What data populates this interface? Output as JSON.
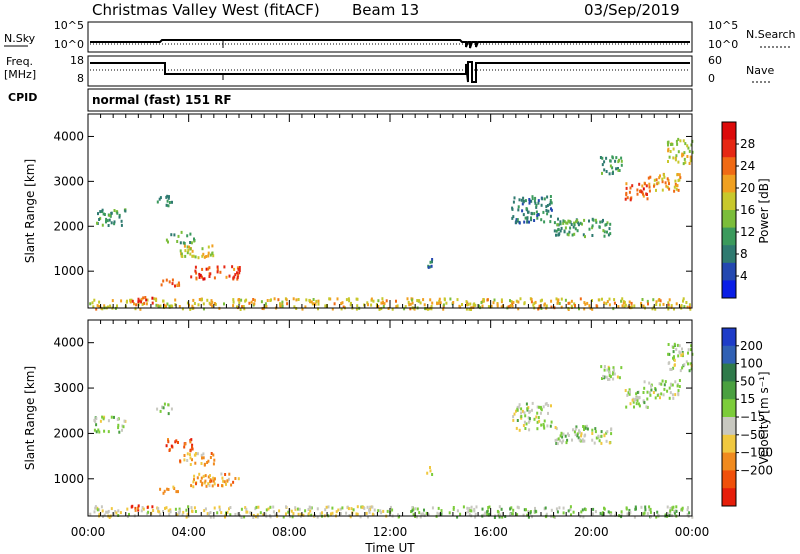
{
  "header": {
    "station": "Christmas Valley West (fitACF)",
    "beam": "Beam 13",
    "date": "03/Sep/2019"
  },
  "labels": {
    "nsky": "N.Sky",
    "nsearch": "N.Search",
    "freq_a": "Freq.",
    "freq_b": "[MHz]",
    "nave": "Nave",
    "cpid": "CPID",
    "cpid_value": "normal (fast) 151 RF",
    "xlabel": "Time UT",
    "ylabel": "Slant Range [km]",
    "power_label": "Power [dB]",
    "velocity_label": "Velocity [m s⁻¹]"
  },
  "noise_axis": {
    "left_ticks": [
      "10^5",
      "10^0"
    ],
    "right_ticks": [
      "10^5",
      "10^0"
    ]
  },
  "freq_axis": {
    "left_ticks": [
      "18",
      "8"
    ],
    "right_ticks": [
      "60",
      "0"
    ]
  },
  "x_axis": {
    "ticks": [
      "00:00",
      "04:00",
      "08:00",
      "12:00",
      "16:00",
      "20:00",
      "00:00"
    ],
    "range": [
      0,
      24
    ]
  },
  "y_axis": {
    "ticks": [
      "1000",
      "2000",
      "3000",
      "4000"
    ],
    "range": [
      180,
      4500
    ]
  },
  "power_scale": {
    "ticks": [
      "4",
      "8",
      "12",
      "16",
      "20",
      "24",
      "28"
    ],
    "colors": [
      "#0a1ee6",
      "#2448b0",
      "#2f7a70",
      "#3b9a5c",
      "#7bbd3a",
      "#c8c82c",
      "#f0a020",
      "#f06a14",
      "#e62814",
      "#dc0a0a"
    ]
  },
  "velocity_scale": {
    "ticks": [
      "200",
      "100",
      "50",
      "15",
      "−15",
      "−50",
      "−100",
      "−200"
    ],
    "colors": [
      "#1e3cc8",
      "#3060b4",
      "#2f7a4a",
      "#4aa040",
      "#7ccc3a",
      "#c8c8c0",
      "#f0c840",
      "#f08a1e",
      "#f0500a",
      "#e61e0a"
    ]
  },
  "chart_data": [
    {
      "type": "heatmap",
      "title": "Power [dB]",
      "xlabel": "Time UT",
      "ylabel": "Slant Range [km]",
      "xlim": [
        0,
        24
      ],
      "ylim": [
        180,
        4500
      ],
      "clim": [
        0,
        30
      ],
      "regions": [
        {
          "t": [
            0.0,
            24.0
          ],
          "r": [
            180,
            420
          ],
          "value": 18
        },
        {
          "t": [
            0.2,
            1.5
          ],
          "r": [
            2050,
            2400
          ],
          "value": 10
        },
        {
          "t": [
            2.7,
            3.3
          ],
          "r": [
            2450,
            2700
          ],
          "value": 8
        },
        {
          "t": [
            3.0,
            4.2
          ],
          "r": [
            1650,
            1900
          ],
          "value": 10
        },
        {
          "t": [
            3.6,
            5.0
          ],
          "r": [
            1300,
            1600
          ],
          "value": 16
        },
        {
          "t": [
            4.0,
            6.0
          ],
          "r": [
            850,
            1150
          ],
          "value": 24
        },
        {
          "t": [
            2.8,
            3.6
          ],
          "r": [
            700,
            850
          ],
          "value": 24
        },
        {
          "t": [
            1.6,
            2.6
          ],
          "r": [
            300,
            450
          ],
          "value": 24
        },
        {
          "t": [
            13.3,
            13.7
          ],
          "r": [
            1100,
            1300
          ],
          "value": 8
        },
        {
          "t": [
            16.8,
            18.4
          ],
          "r": [
            2100,
            2700
          ],
          "value": 8
        },
        {
          "t": [
            18.5,
            20.8
          ],
          "r": [
            1800,
            2200
          ],
          "value": 10
        },
        {
          "t": [
            20.3,
            21.2
          ],
          "r": [
            3200,
            3600
          ],
          "value": 10
        },
        {
          "t": [
            21.3,
            22.2
          ],
          "r": [
            2600,
            3000
          ],
          "value": 24
        },
        {
          "t": [
            22.0,
            23.5
          ],
          "r": [
            2800,
            3200
          ],
          "value": 20
        },
        {
          "t": [
            23.0,
            24.0
          ],
          "r": [
            3400,
            4000
          ],
          "value": 16
        }
      ]
    },
    {
      "type": "heatmap",
      "title": "Velocity [m s⁻¹]",
      "xlabel": "Time UT",
      "ylabel": "Slant Range [km]",
      "xlim": [
        0,
        24
      ],
      "ylim": [
        180,
        4500
      ],
      "clim": [
        -200,
        200
      ],
      "regions": [
        {
          "t": [
            0.0,
            12.0
          ],
          "r": [
            180,
            420
          ],
          "value": -30
        },
        {
          "t": [
            12.0,
            24.0
          ],
          "r": [
            180,
            420
          ],
          "value": 15
        },
        {
          "t": [
            0.2,
            1.5
          ],
          "r": [
            2050,
            2400
          ],
          "value": 0
        },
        {
          "t": [
            2.7,
            3.3
          ],
          "r": [
            2450,
            2700
          ],
          "value": 0
        },
        {
          "t": [
            3.0,
            4.2
          ],
          "r": [
            1650,
            1900
          ],
          "value": -150
        },
        {
          "t": [
            3.6,
            5.0
          ],
          "r": [
            1300,
            1600
          ],
          "value": -80
        },
        {
          "t": [
            4.0,
            6.0
          ],
          "r": [
            850,
            1150
          ],
          "value": -80
        },
        {
          "t": [
            2.8,
            3.6
          ],
          "r": [
            700,
            850
          ],
          "value": -80
        },
        {
          "t": [
            1.6,
            2.6
          ],
          "r": [
            300,
            450
          ],
          "value": -150
        },
        {
          "t": [
            13.3,
            13.7
          ],
          "r": [
            1100,
            1300
          ],
          "value": -30
        },
        {
          "t": [
            16.8,
            18.4
          ],
          "r": [
            2100,
            2700
          ],
          "value": 0
        },
        {
          "t": [
            18.5,
            20.8
          ],
          "r": [
            1800,
            2200
          ],
          "value": 0
        },
        {
          "t": [
            20.3,
            21.2
          ],
          "r": [
            3200,
            3600
          ],
          "value": 0
        },
        {
          "t": [
            21.3,
            22.2
          ],
          "r": [
            2600,
            3000
          ],
          "value": 0
        },
        {
          "t": [
            22.0,
            23.5
          ],
          "r": [
            2800,
            3200
          ],
          "value": 0
        },
        {
          "t": [
            23.0,
            24.0
          ],
          "r": [
            3400,
            4000
          ],
          "value": 0
        }
      ]
    }
  ]
}
